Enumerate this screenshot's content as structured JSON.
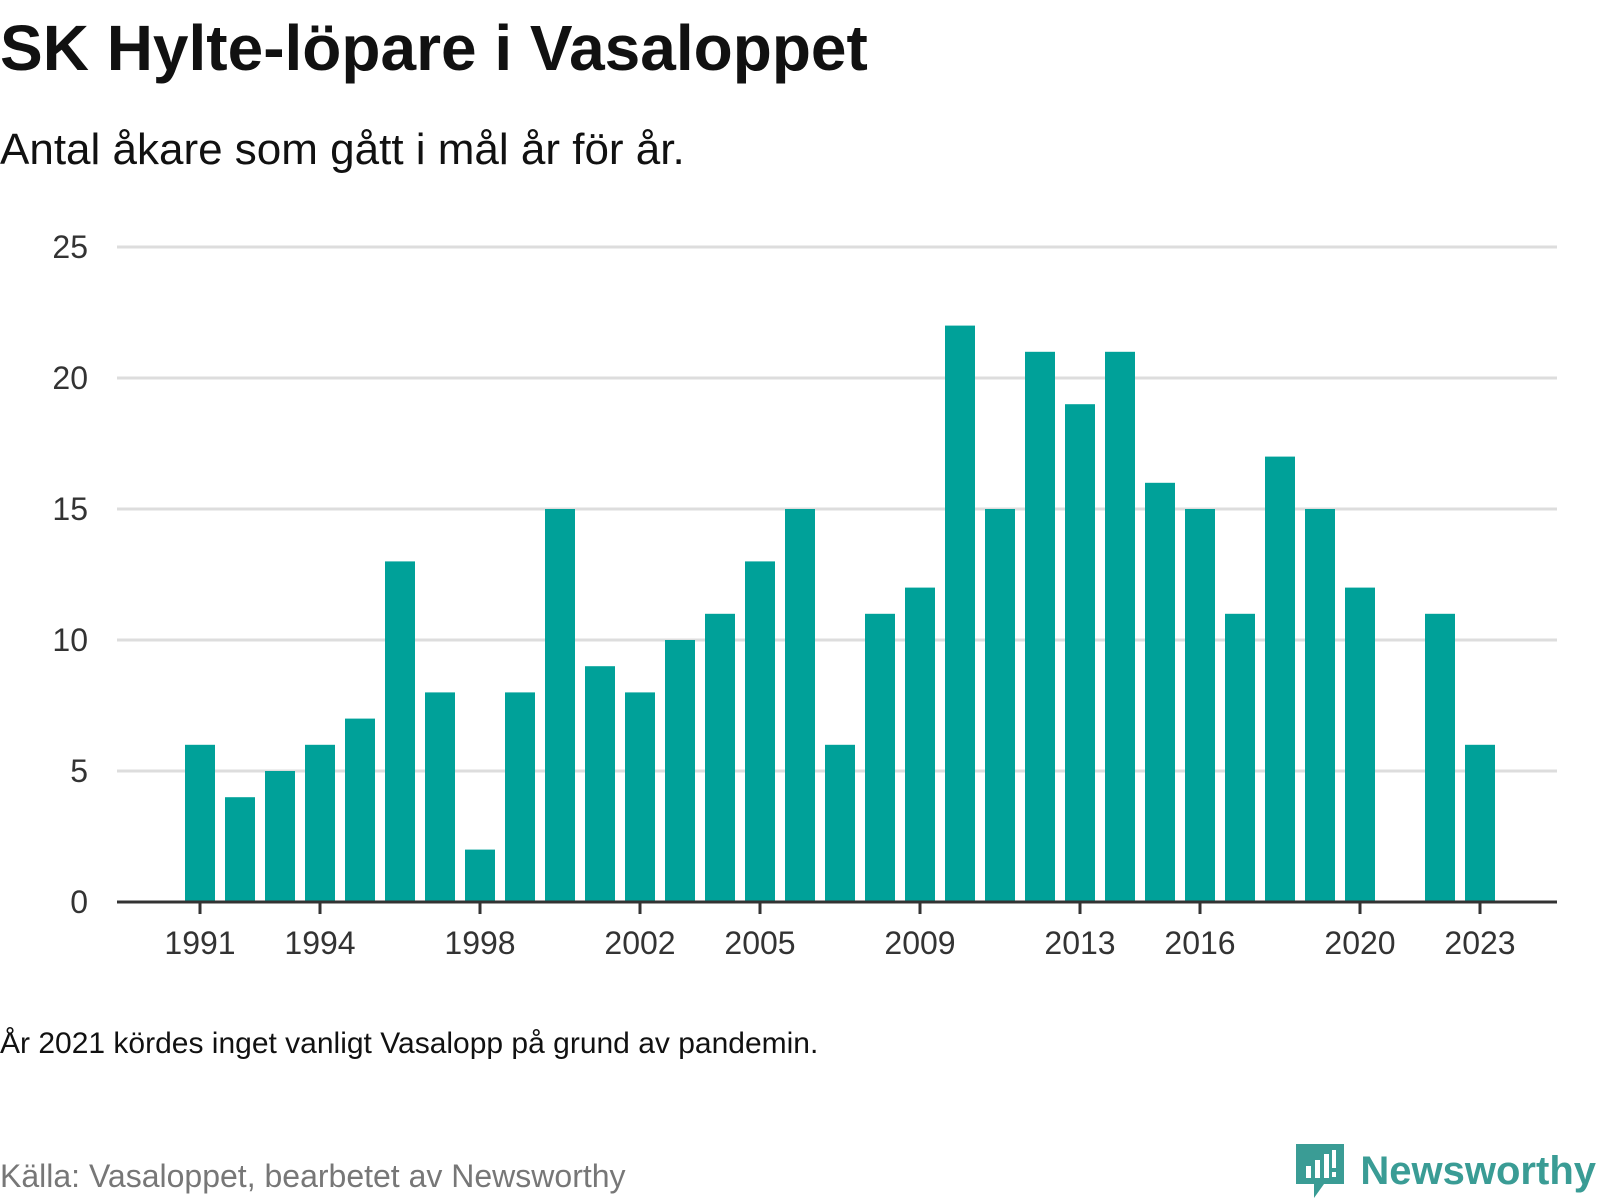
{
  "title": "SK Hylte-löpare i Vasaloppet",
  "subtitle": "Antal åkare som gått i mål år för år.",
  "note": "År 2021 kördes inget vanligt Vasalopp på grund av pandemin.",
  "source": "Källa: Vasaloppet, bearbetet av Newsworthy",
  "brand": {
    "name": "Newsworthy",
    "icon": "newsworthy-logo-icon",
    "color": "#3a9c95"
  },
  "chart_data": {
    "type": "bar",
    "title": "SK Hylte-löpare i Vasaloppet",
    "subtitle": "Antal åkare som gått i mål år för år.",
    "xlabel": "",
    "ylabel": "",
    "bar_color": "#00a199",
    "grid": true,
    "ylim": [
      0,
      25
    ],
    "y_ticks": [
      0,
      5,
      10,
      15,
      20,
      25
    ],
    "x_ticks": [
      1991,
      1994,
      1998,
      2002,
      2005,
      2009,
      2013,
      2016,
      2020,
      2023
    ],
    "x": [
      1991,
      1992,
      1993,
      1994,
      1995,
      1996,
      1997,
      1998,
      1999,
      2000,
      2001,
      2002,
      2003,
      2004,
      2005,
      2006,
      2007,
      2008,
      2009,
      2010,
      2011,
      2012,
      2013,
      2014,
      2015,
      2016,
      2017,
      2018,
      2019,
      2020,
      2021,
      2022,
      2023
    ],
    "values": [
      6,
      4,
      5,
      6,
      7,
      13,
      8,
      2,
      8,
      15,
      9,
      8,
      10,
      11,
      13,
      15,
      6,
      11,
      12,
      22,
      15,
      21,
      19,
      21,
      16,
      15,
      11,
      17,
      15,
      12,
      null,
      11,
      6
    ]
  }
}
